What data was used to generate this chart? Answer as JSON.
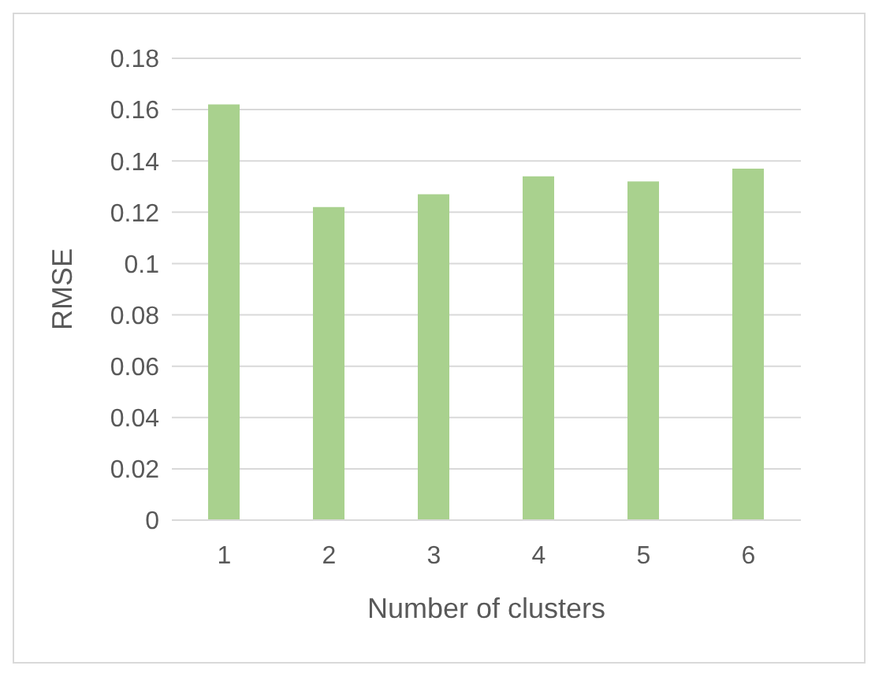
{
  "chart_data": {
    "type": "bar",
    "xlabel": "Number of clusters",
    "ylabel": "RMSE",
    "categories": [
      "1",
      "2",
      "3",
      "4",
      "5",
      "6"
    ],
    "values": [
      0.162,
      0.122,
      0.127,
      0.134,
      0.132,
      0.137
    ],
    "color": "#a9d18e",
    "ylim": [
      0,
      0.18
    ],
    "yticks": [
      0,
      0.02,
      0.04,
      0.06,
      0.08,
      {
        "value": 0.1,
        "label": "0.1"
      },
      0.12,
      0.14,
      0.16,
      0.18
    ],
    "grid": "y"
  }
}
